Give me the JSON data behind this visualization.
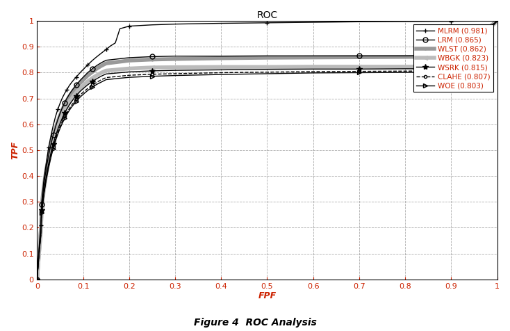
{
  "title": "ROC",
  "xlabel": "FPF",
  "ylabel": "TPF",
  "caption": "Figure 4  ROC Analysis",
  "xlim": [
    0,
    1
  ],
  "ylim": [
    0,
    1
  ],
  "xticks": [
    0,
    0.1,
    0.2,
    0.3,
    0.4,
    0.5,
    0.6,
    0.7,
    0.8,
    0.9,
    1.0
  ],
  "yticks": [
    0,
    0.1,
    0.2,
    0.3,
    0.4,
    0.5,
    0.6,
    0.7,
    0.8,
    0.9,
    1.0
  ],
  "tick_color": "#cc2200",
  "title_color": "#000000",
  "label_color": "#cc2200",
  "legend_label_color": "#cc2200",
  "caption_color": "#000000",
  "background_color": "#ffffff",
  "legend_fontsize": 7.5,
  "axis_fontsize": 9,
  "title_fontsize": 10,
  "caption_fontsize": 10,
  "series": [
    {
      "name": "MLRM (0.981)",
      "color": "#000000",
      "linestyle": "-",
      "linewidth": 1.0,
      "marker": "+",
      "markersize": 5,
      "markevery": 4,
      "zorder": 5,
      "fpf": [
        0.0,
        0.002,
        0.004,
        0.006,
        0.008,
        0.01,
        0.015,
        0.02,
        0.025,
        0.03,
        0.035,
        0.04,
        0.045,
        0.05,
        0.055,
        0.06,
        0.065,
        0.07,
        0.075,
        0.08,
        0.085,
        0.09,
        0.095,
        0.1,
        0.11,
        0.12,
        0.13,
        0.14,
        0.15,
        0.16,
        0.17,
        0.18,
        0.2,
        0.25,
        0.3,
        0.4,
        0.5,
        0.6,
        0.7,
        0.8,
        0.9,
        1.0
      ],
      "tpf": [
        0.0,
        0.06,
        0.115,
        0.165,
        0.21,
        0.3,
        0.39,
        0.45,
        0.51,
        0.555,
        0.595,
        0.63,
        0.658,
        0.682,
        0.703,
        0.72,
        0.735,
        0.75,
        0.762,
        0.773,
        0.783,
        0.793,
        0.803,
        0.812,
        0.83,
        0.847,
        0.862,
        0.876,
        0.89,
        0.904,
        0.915,
        0.97,
        0.98,
        0.985,
        0.988,
        0.991,
        0.993,
        0.995,
        0.997,
        0.998,
        0.999,
        1.0
      ]
    },
    {
      "name": "LRM (0.865)",
      "color": "#000000",
      "linestyle": "-",
      "linewidth": 1.0,
      "marker": "o",
      "markersize": 5,
      "markevery": 5,
      "zorder": 4,
      "fpf": [
        0.0,
        0.002,
        0.004,
        0.006,
        0.008,
        0.01,
        0.015,
        0.02,
        0.025,
        0.03,
        0.035,
        0.04,
        0.045,
        0.05,
        0.055,
        0.06,
        0.065,
        0.07,
        0.075,
        0.08,
        0.085,
        0.09,
        0.095,
        0.1,
        0.11,
        0.12,
        0.13,
        0.14,
        0.15,
        0.2,
        0.25,
        0.3,
        0.4,
        0.5,
        0.6,
        0.7,
        0.8,
        0.9,
        1.0
      ],
      "tpf": [
        0.0,
        0.055,
        0.105,
        0.15,
        0.192,
        0.29,
        0.37,
        0.43,
        0.48,
        0.522,
        0.558,
        0.59,
        0.618,
        0.643,
        0.665,
        0.684,
        0.701,
        0.716,
        0.729,
        0.741,
        0.753,
        0.763,
        0.773,
        0.782,
        0.8,
        0.815,
        0.828,
        0.839,
        0.848,
        0.858,
        0.862,
        0.864,
        0.864,
        0.865,
        0.865,
        0.865,
        0.865,
        0.866,
        1.0
      ]
    },
    {
      "name": "WLST (0.862)",
      "color": "#999999",
      "linestyle": "-",
      "linewidth": 4.0,
      "marker": ".",
      "markersize": 4,
      "markevery": 5,
      "zorder": 2,
      "fpf": [
        0.0,
        0.002,
        0.004,
        0.006,
        0.008,
        0.01,
        0.015,
        0.02,
        0.025,
        0.03,
        0.035,
        0.04,
        0.045,
        0.05,
        0.055,
        0.06,
        0.065,
        0.07,
        0.075,
        0.08,
        0.085,
        0.09,
        0.095,
        0.1,
        0.11,
        0.12,
        0.13,
        0.14,
        0.15,
        0.2,
        0.25,
        0.3,
        0.4,
        0.5,
        0.6,
        0.7,
        0.8,
        0.9,
        1.0
      ],
      "tpf": [
        0.0,
        0.053,
        0.102,
        0.147,
        0.188,
        0.285,
        0.365,
        0.425,
        0.474,
        0.516,
        0.552,
        0.583,
        0.611,
        0.635,
        0.657,
        0.676,
        0.693,
        0.708,
        0.721,
        0.733,
        0.744,
        0.754,
        0.763,
        0.772,
        0.789,
        0.803,
        0.816,
        0.827,
        0.836,
        0.847,
        0.851,
        0.853,
        0.856,
        0.858,
        0.859,
        0.86,
        0.861,
        0.862,
        1.0
      ]
    },
    {
      "name": "WBGK (0.823)",
      "color": "#bbbbbb",
      "linestyle": "-",
      "linewidth": 4.0,
      "marker": "<",
      "markersize": 5,
      "markevery": 5,
      "zorder": 2,
      "fpf": [
        0.0,
        0.002,
        0.004,
        0.006,
        0.008,
        0.01,
        0.015,
        0.02,
        0.025,
        0.03,
        0.035,
        0.04,
        0.045,
        0.05,
        0.055,
        0.06,
        0.065,
        0.07,
        0.075,
        0.08,
        0.085,
        0.09,
        0.095,
        0.1,
        0.11,
        0.12,
        0.13,
        0.14,
        0.15,
        0.2,
        0.25,
        0.3,
        0.4,
        0.5,
        0.6,
        0.7,
        0.8,
        0.9,
        1.0
      ],
      "tpf": [
        0.0,
        0.05,
        0.097,
        0.14,
        0.179,
        0.273,
        0.35,
        0.408,
        0.457,
        0.498,
        0.533,
        0.564,
        0.591,
        0.615,
        0.636,
        0.655,
        0.672,
        0.687,
        0.7,
        0.712,
        0.723,
        0.733,
        0.742,
        0.75,
        0.766,
        0.779,
        0.79,
        0.8,
        0.808,
        0.816,
        0.82,
        0.821,
        0.822,
        0.822,
        0.823,
        0.823,
        0.823,
        0.823,
        1.0
      ]
    },
    {
      "name": "WSRK (0.815)",
      "color": "#000000",
      "linestyle": "-",
      "linewidth": 1.0,
      "marker": "*",
      "markersize": 6,
      "markevery": 5,
      "zorder": 4,
      "fpf": [
        0.0,
        0.002,
        0.004,
        0.006,
        0.008,
        0.01,
        0.015,
        0.02,
        0.025,
        0.03,
        0.035,
        0.04,
        0.045,
        0.05,
        0.055,
        0.06,
        0.065,
        0.07,
        0.075,
        0.08,
        0.085,
        0.09,
        0.095,
        0.1,
        0.11,
        0.12,
        0.13,
        0.14,
        0.15,
        0.2,
        0.25,
        0.3,
        0.4,
        0.5,
        0.6,
        0.7,
        0.8,
        0.9,
        1.0
      ],
      "tpf": [
        0.0,
        0.05,
        0.095,
        0.137,
        0.175,
        0.268,
        0.344,
        0.401,
        0.448,
        0.489,
        0.524,
        0.554,
        0.581,
        0.604,
        0.625,
        0.644,
        0.66,
        0.675,
        0.688,
        0.7,
        0.711,
        0.721,
        0.73,
        0.738,
        0.753,
        0.766,
        0.777,
        0.787,
        0.795,
        0.803,
        0.807,
        0.809,
        0.811,
        0.813,
        0.814,
        0.814,
        0.815,
        0.815,
        1.0
      ]
    },
    {
      "name": "CLAHE (0.807)",
      "color": "#000000",
      "linestyle": "--",
      "linewidth": 1.0,
      "marker": "o",
      "markersize": 3,
      "markevery": 5,
      "zorder": 3,
      "fpf": [
        0.0,
        0.002,
        0.004,
        0.006,
        0.008,
        0.01,
        0.015,
        0.02,
        0.025,
        0.03,
        0.035,
        0.04,
        0.045,
        0.05,
        0.055,
        0.06,
        0.065,
        0.07,
        0.075,
        0.08,
        0.085,
        0.09,
        0.095,
        0.1,
        0.11,
        0.12,
        0.13,
        0.14,
        0.15,
        0.2,
        0.25,
        0.3,
        0.4,
        0.5,
        0.6,
        0.7,
        0.8,
        0.9,
        1.0
      ],
      "tpf": [
        0.0,
        0.048,
        0.092,
        0.133,
        0.17,
        0.261,
        0.336,
        0.392,
        0.439,
        0.479,
        0.513,
        0.543,
        0.569,
        0.592,
        0.612,
        0.631,
        0.647,
        0.661,
        0.674,
        0.686,
        0.697,
        0.707,
        0.716,
        0.724,
        0.739,
        0.752,
        0.763,
        0.773,
        0.781,
        0.79,
        0.794,
        0.796,
        0.8,
        0.802,
        0.804,
        0.805,
        0.806,
        0.807,
        1.0
      ]
    },
    {
      "name": "WOE (0.803)",
      "color": "#000000",
      "linestyle": "-",
      "linewidth": 1.0,
      "marker": ">",
      "markersize": 5,
      "markevery": 5,
      "zorder": 3,
      "fpf": [
        0.0,
        0.002,
        0.004,
        0.006,
        0.008,
        0.01,
        0.015,
        0.02,
        0.025,
        0.03,
        0.035,
        0.04,
        0.045,
        0.05,
        0.055,
        0.06,
        0.065,
        0.07,
        0.075,
        0.08,
        0.085,
        0.09,
        0.095,
        0.1,
        0.11,
        0.12,
        0.13,
        0.14,
        0.15,
        0.2,
        0.25,
        0.3,
        0.4,
        0.5,
        0.6,
        0.7,
        0.8,
        0.9,
        1.0
      ],
      "tpf": [
        0.0,
        0.047,
        0.09,
        0.13,
        0.167,
        0.257,
        0.331,
        0.387,
        0.433,
        0.472,
        0.506,
        0.536,
        0.562,
        0.585,
        0.605,
        0.623,
        0.639,
        0.654,
        0.667,
        0.678,
        0.689,
        0.699,
        0.708,
        0.716,
        0.731,
        0.744,
        0.755,
        0.764,
        0.773,
        0.782,
        0.786,
        0.789,
        0.793,
        0.796,
        0.799,
        0.8,
        0.801,
        0.803,
        1.0
      ]
    }
  ]
}
